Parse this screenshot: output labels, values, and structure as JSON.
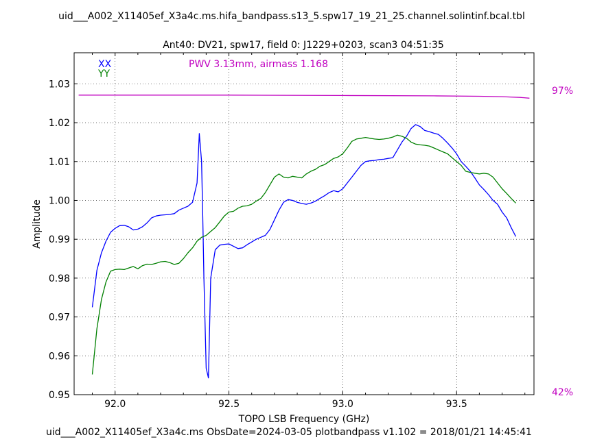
{
  "header": {
    "title_line1": "uid___A002_X11405ef_X3a4c.ms.hifa_bandpass.s13_5.spw17_19_21_25.channel.solintinf.bcal.tbl",
    "title_line2": "Ant40: DV21,  spw17,  field 0: J1229+0203,  scan3  04:51:35"
  },
  "footer": {
    "text": "uid___A002_X11405ef_X3a4c.ms  ObsDate=2024-03-05   plotbandpass v1.102 = 2018/01/21 14:45:41"
  },
  "annotation": {
    "pwv_text": "PWV 3.13mm, airmass 1.168",
    "pwv_color": "#c000c0"
  },
  "right_axis": {
    "top_label": "97%",
    "bottom_label": "42%",
    "color": "#c000c0"
  },
  "chart_data": {
    "type": "line",
    "title": "Ant40: DV21,  spw17,  field 0: J1229+0203,  scan3  04:51:35",
    "xlabel": "TOPO LSB Frequency (GHz)",
    "ylabel": "Amplitude",
    "xlim": [
      91.82,
      93.84
    ],
    "ylim": [
      0.95,
      1.038
    ],
    "xticks": [
      92.0,
      92.5,
      93.0,
      93.5
    ],
    "xtick_labels": [
      "92.0",
      "92.5",
      "93.0",
      "93.5"
    ],
    "yticks": [
      0.95,
      0.96,
      0.97,
      0.98,
      0.99,
      1.0,
      1.01,
      1.02,
      1.03
    ],
    "ytick_labels": [
      "0.95",
      "0.96",
      "0.97",
      "0.98",
      "0.99",
      "1.00",
      "1.01",
      "1.02",
      "1.03"
    ],
    "grid": true,
    "legend_position": "top-left",
    "series": [
      {
        "name": "XX",
        "color": "#0000ff",
        "x": [
          91.9,
          91.92,
          91.94,
          91.96,
          91.98,
          92.0,
          92.02,
          92.04,
          92.06,
          92.08,
          92.1,
          92.12,
          92.14,
          92.16,
          92.18,
          92.2,
          92.22,
          92.24,
          92.26,
          92.28,
          92.3,
          92.32,
          92.34,
          92.36,
          92.37,
          92.38,
          92.385,
          92.39,
          92.4,
          92.41,
          92.42,
          92.44,
          92.46,
          92.48,
          92.5,
          92.52,
          92.54,
          92.56,
          92.58,
          92.6,
          92.62,
          92.64,
          92.66,
          92.68,
          92.7,
          92.72,
          92.74,
          92.76,
          92.78,
          92.8,
          92.82,
          92.84,
          92.86,
          92.88,
          92.9,
          92.92,
          92.94,
          92.96,
          92.98,
          93.0,
          93.02,
          93.04,
          93.06,
          93.08,
          93.1,
          93.12,
          93.14,
          93.16,
          93.18,
          93.2,
          93.22,
          93.24,
          93.26,
          93.28,
          93.3,
          93.32,
          93.34,
          93.36,
          93.38,
          93.4,
          93.42,
          93.44,
          93.46,
          93.48,
          93.5,
          93.52,
          93.54,
          93.56,
          93.58,
          93.6,
          93.62,
          93.64,
          93.66,
          93.68,
          93.7,
          93.72,
          93.74,
          93.76
        ],
        "values": [
          0.9725,
          0.982,
          0.9865,
          0.9895,
          0.9918,
          0.9928,
          0.9935,
          0.9936,
          0.9932,
          0.9924,
          0.9926,
          0.9932,
          0.9942,
          0.9955,
          0.996,
          0.9962,
          0.9963,
          0.9964,
          0.9966,
          0.9975,
          0.998,
          0.9985,
          0.9995,
          1.0045,
          1.0172,
          1.01,
          0.996,
          0.98,
          0.9568,
          0.9543,
          0.98,
          0.9873,
          0.9885,
          0.9887,
          0.9888,
          0.9882,
          0.9876,
          0.9878,
          0.9886,
          0.9893,
          0.99,
          0.9905,
          0.991,
          0.9925,
          0.995,
          0.9975,
          0.9995,
          1.0002,
          1.0,
          0.9995,
          0.9992,
          0.999,
          0.9993,
          0.9998,
          1.0005,
          1.0012,
          1.002,
          1.0025,
          1.0022,
          1.003,
          1.0045,
          1.006,
          1.0075,
          1.009,
          1.01,
          1.0102,
          1.0103,
          1.0105,
          1.0106,
          1.0108,
          1.011,
          1.013,
          1.015,
          1.0165,
          1.0185,
          1.0195,
          1.019,
          1.018,
          1.0177,
          1.0173,
          1.017,
          1.016,
          1.0148,
          1.0135,
          1.012,
          1.01,
          1.0088,
          1.0075,
          1.0058,
          1.004,
          1.0028,
          1.0015,
          1.0,
          0.999,
          0.997,
          0.9955,
          0.993,
          0.9907
        ]
      },
      {
        "name": "YY",
        "color": "#008000",
        "x": [
          91.9,
          91.92,
          91.94,
          91.96,
          91.98,
          92.0,
          92.02,
          92.04,
          92.06,
          92.08,
          92.1,
          92.12,
          92.14,
          92.16,
          92.18,
          92.2,
          92.22,
          92.24,
          92.26,
          92.28,
          92.3,
          92.32,
          92.34,
          92.36,
          92.38,
          92.4,
          92.42,
          92.44,
          92.46,
          92.48,
          92.5,
          92.52,
          92.54,
          92.56,
          92.58,
          92.6,
          92.62,
          92.64,
          92.66,
          92.68,
          92.7,
          92.72,
          92.74,
          92.76,
          92.78,
          92.8,
          92.82,
          92.84,
          92.86,
          92.88,
          92.9,
          92.92,
          92.94,
          92.96,
          92.98,
          93.0,
          93.02,
          93.04,
          93.06,
          93.08,
          93.1,
          93.12,
          93.14,
          93.16,
          93.18,
          93.2,
          93.22,
          93.24,
          93.26,
          93.28,
          93.3,
          93.32,
          93.34,
          93.36,
          93.38,
          93.4,
          93.42,
          93.44,
          93.46,
          93.48,
          93.5,
          93.52,
          93.54,
          93.56,
          93.58,
          93.6,
          93.62,
          93.64,
          93.66,
          93.68,
          93.7,
          93.72,
          93.74,
          93.76
        ],
        "values": [
          0.9552,
          0.967,
          0.9745,
          0.979,
          0.9818,
          0.9822,
          0.9823,
          0.9822,
          0.9826,
          0.983,
          0.9824,
          0.9832,
          0.9836,
          0.9835,
          0.9838,
          0.9842,
          0.9843,
          0.984,
          0.9835,
          0.9838,
          0.985,
          0.9865,
          0.9878,
          0.9895,
          0.9905,
          0.991,
          0.992,
          0.993,
          0.9945,
          0.996,
          0.997,
          0.9972,
          0.998,
          0.9985,
          0.9986,
          0.999,
          0.9998,
          1.0005,
          1.002,
          1.004,
          1.006,
          1.0068,
          1.006,
          1.0058,
          1.0062,
          1.006,
          1.0058,
          1.0068,
          1.0075,
          1.008,
          1.0088,
          1.0092,
          1.01,
          1.0108,
          1.0112,
          1.012,
          1.0135,
          1.0152,
          1.0158,
          1.016,
          1.0162,
          1.016,
          1.0158,
          1.0157,
          1.0158,
          1.016,
          1.0163,
          1.0168,
          1.0165,
          1.016,
          1.015,
          1.0145,
          1.0143,
          1.0142,
          1.014,
          1.0135,
          1.013,
          1.0125,
          1.012,
          1.011,
          1.01,
          1.009,
          1.0075,
          1.0072,
          1.007,
          1.0068,
          1.007,
          1.0068,
          1.006,
          1.0045,
          1.003,
          1.0018,
          1.0005,
          0.9993
        ]
      },
      {
        "name": "",
        "color": "#c000c0",
        "axis": "right",
        "x": [
          91.84,
          92.0,
          92.5,
          93.0,
          93.4,
          93.6,
          93.7,
          93.78,
          93.82
        ],
        "values": [
          1.0271,
          1.0271,
          1.0271,
          1.027,
          1.0269,
          1.0268,
          1.0267,
          1.0265,
          1.0263
        ]
      }
    ]
  }
}
